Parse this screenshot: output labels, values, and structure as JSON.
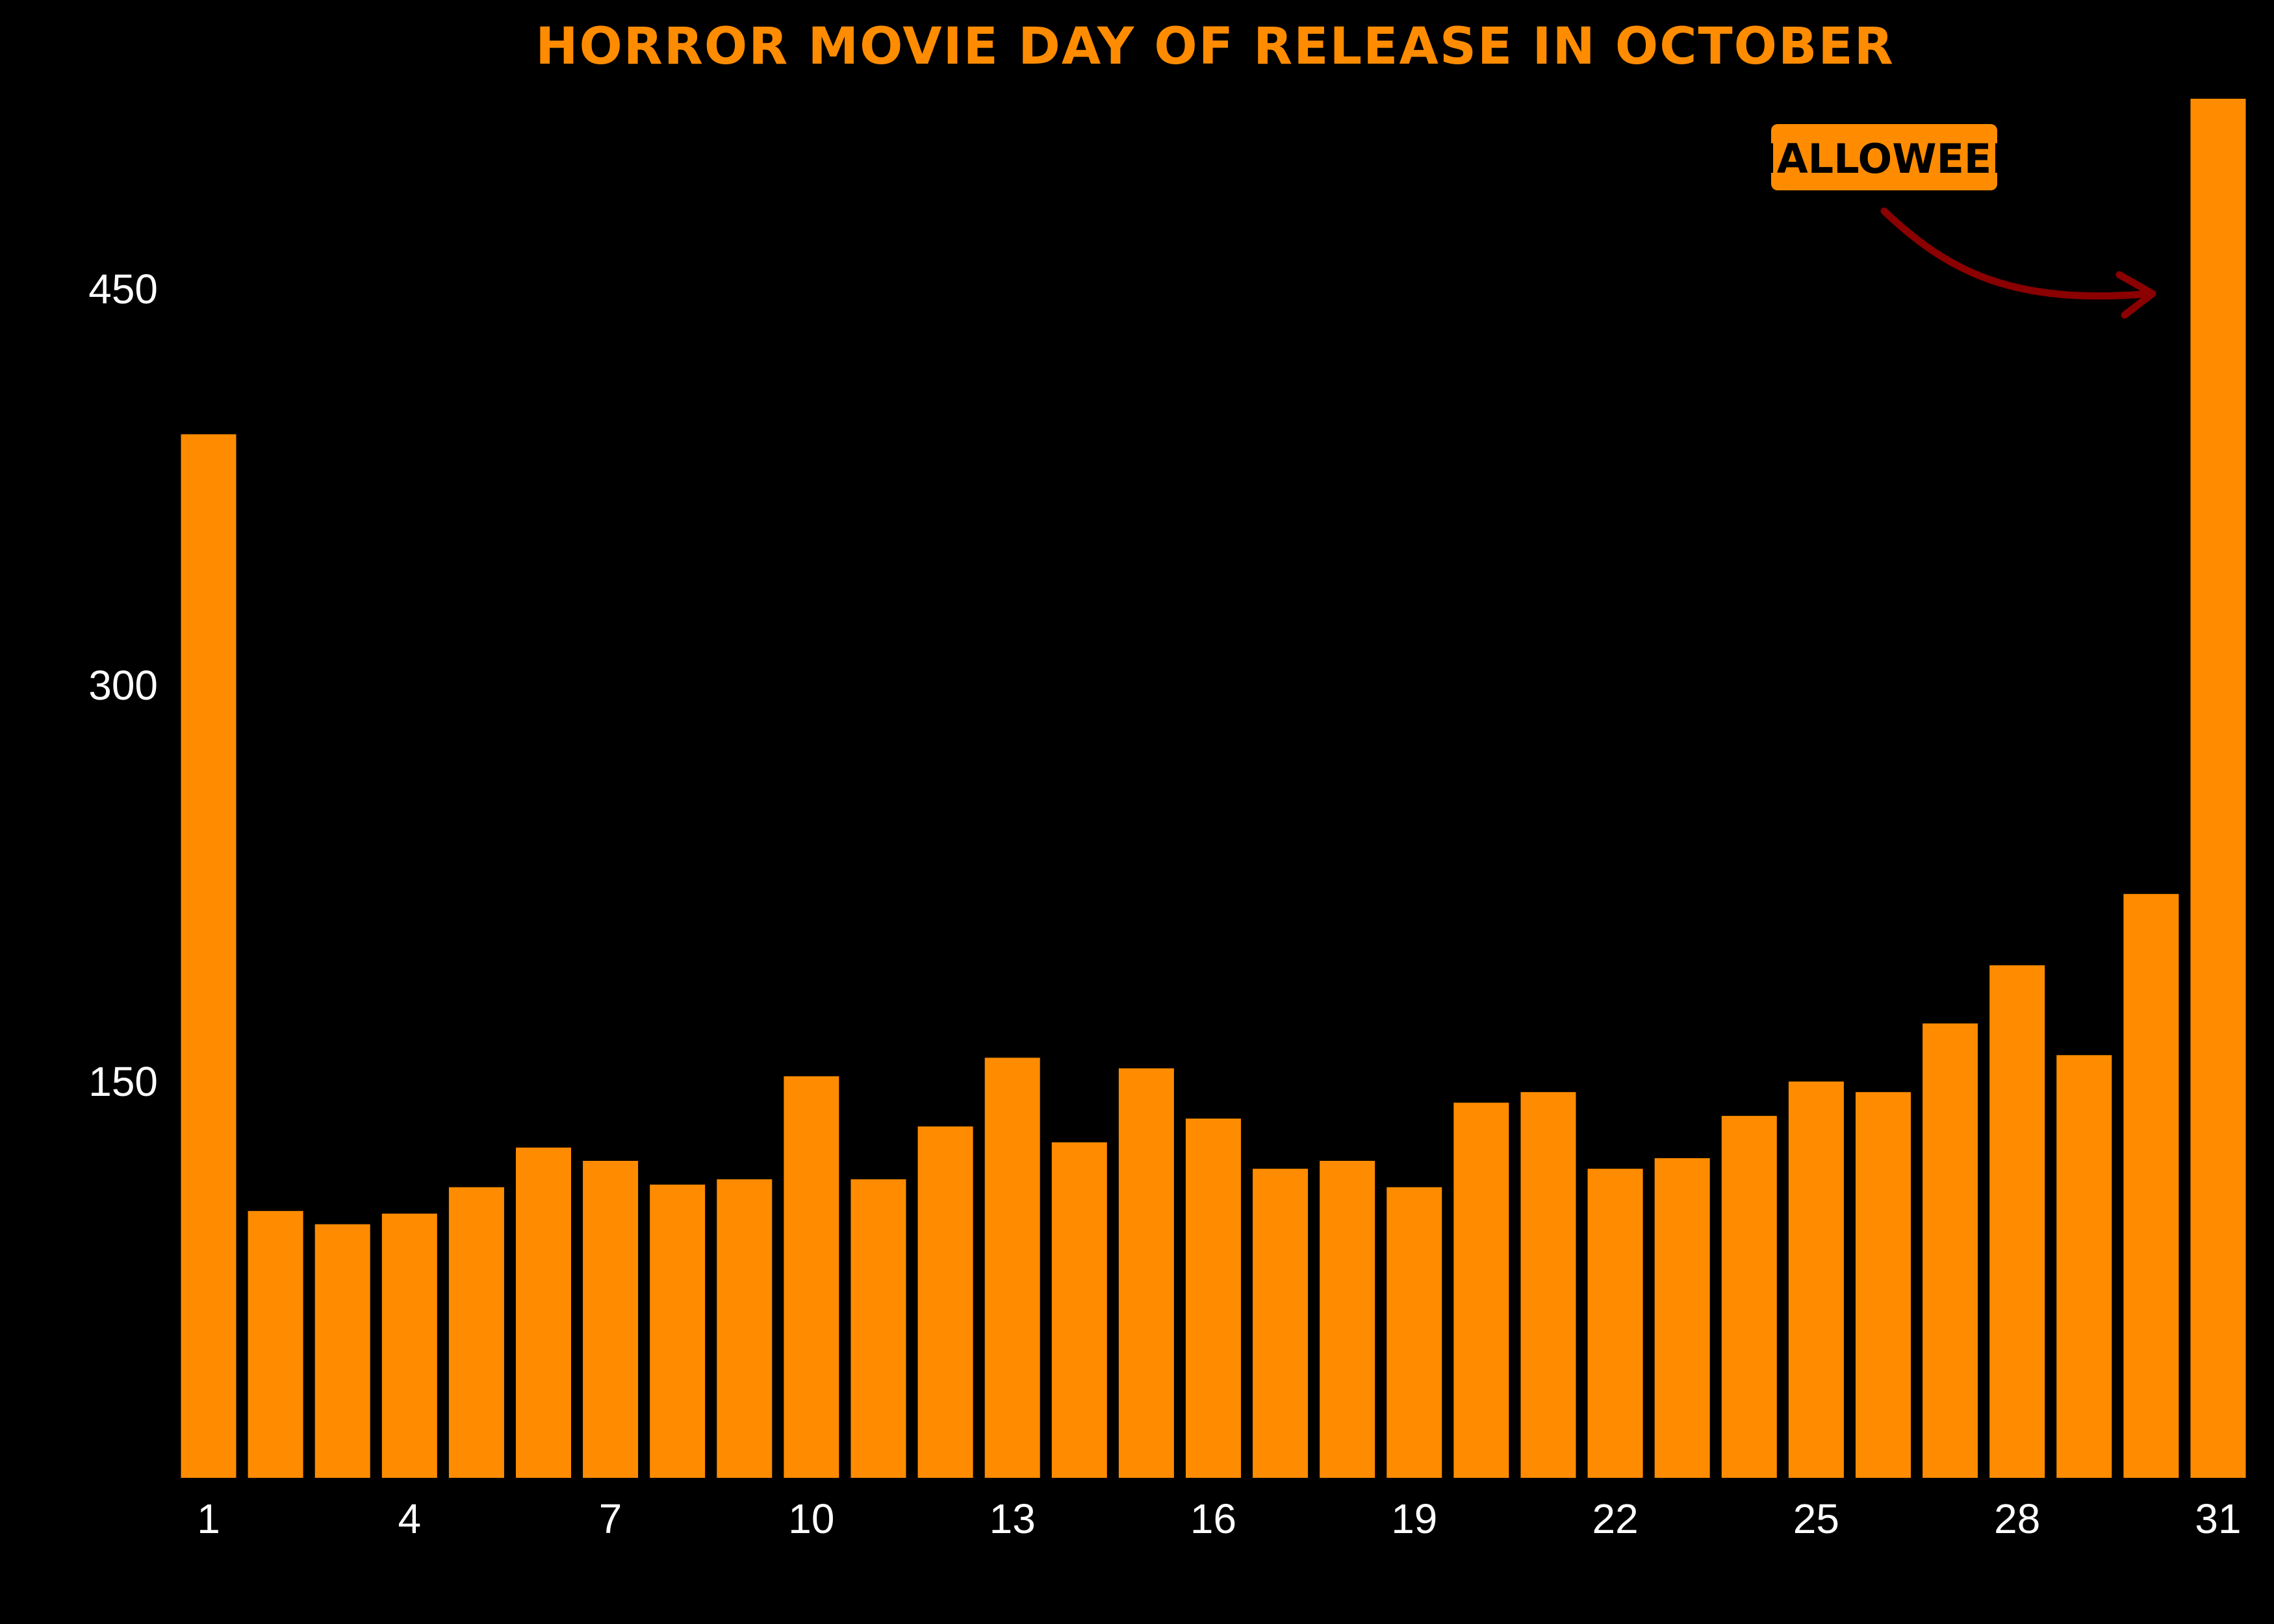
{
  "colors": {
    "background": "#000000",
    "bar": "#FF8C00",
    "text": "#FFFFFF",
    "title": "#FF8C00",
    "annotation_box": "#FF8C00",
    "annotation_text": "#000000",
    "arrow": "#8B0000"
  },
  "chart_data": {
    "type": "bar",
    "title": "HORROR MOVIE DAY OF RELEASE IN OCTOBER",
    "xlabel": "",
    "ylabel": "",
    "categories": [
      1,
      2,
      3,
      4,
      5,
      6,
      7,
      8,
      9,
      10,
      11,
      12,
      13,
      14,
      15,
      16,
      17,
      18,
      19,
      20,
      21,
      22,
      23,
      24,
      25,
      26,
      27,
      28,
      29,
      30,
      31
    ],
    "values": [
      395,
      101,
      96,
      100,
      110,
      125,
      120,
      111,
      113,
      152,
      113,
      133,
      159,
      127,
      155,
      136,
      117,
      120,
      110,
      142,
      146,
      117,
      121,
      137,
      150,
      146,
      172,
      194,
      160,
      221,
      522
    ],
    "x_tick_labels": [
      "1",
      "4",
      "7",
      "10",
      "13",
      "16",
      "19",
      "22",
      "25",
      "28",
      "31"
    ],
    "y_ticks": [
      150,
      300,
      450
    ],
    "y_tick_labels": [
      "150",
      "300",
      "450"
    ],
    "ylim": [
      0,
      522
    ],
    "grid": false,
    "legend": "none",
    "annotations": [
      {
        "text": "HALLOWEEN",
        "target_category": 31
      }
    ]
  }
}
